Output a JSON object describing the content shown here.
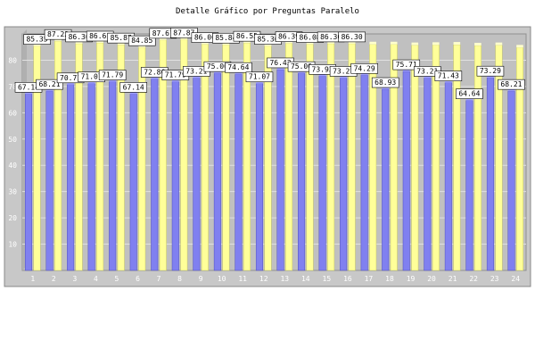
{
  "title": "Detalle Gráfico por Preguntas Paralelo",
  "chart_data": {
    "type": "bar",
    "title": "Detalle Gráfico por Preguntas Paralelo",
    "xlabel": "",
    "ylabel": "",
    "ylim": [
      0,
      90
    ],
    "yticks": [
      10,
      20,
      30,
      40,
      50,
      60,
      70,
      80
    ],
    "grid": true,
    "categories": [
      "1",
      "2",
      "3",
      "4",
      "5",
      "6",
      "7",
      "8",
      "9",
      "10",
      "11",
      "12",
      "13",
      "14",
      "15",
      "16",
      "17",
      "18",
      "19",
      "20",
      "21",
      "22",
      "23",
      "24"
    ],
    "series": [
      {
        "color": "#8080f0",
        "values": [
          67.14,
          68.21,
          70.71,
          71.07,
          71.79,
          67.14,
          72.86,
          71.79,
          73.21,
          75.0,
          74.64,
          71.07,
          76.43,
          75.0,
          73.93,
          73.21,
          74.29,
          68.93,
          75.71,
          73.21,
          71.43,
          64.64,
          73.29,
          68.21
        ]
      },
      {
        "color": "#ffff99",
        "values": [
          85.35,
          87.22,
          86.3,
          86.61,
          85.87,
          84.85,
          87.67,
          87.87,
          86.06,
          85.84,
          86.55,
          85.36,
          86.39,
          86.08,
          86.3,
          86.3,
          86.0,
          86.0,
          85.7,
          85.8,
          85.9,
          85.6,
          85.7,
          84.8
        ]
      }
    ],
    "data_labels": [
      {
        "series": 0,
        "text": [
          "67.14",
          "68.21",
          "70.71",
          "71.07",
          "71.79",
          "67.14",
          "72.86",
          "71.79",
          "73.21",
          "75.00",
          "74.64",
          "71.07",
          "76.43",
          "75.00",
          "73.93",
          "73.21",
          "74.29",
          "68.93",
          "75.71",
          "73.21",
          "71.43",
          "64.64",
          "73.29",
          "68.21"
        ]
      },
      {
        "series": 1,
        "text": [
          "85.35",
          "87.22",
          "86.30",
          "86.61",
          "85.87",
          "84.85",
          "87.67",
          "87.87",
          "86.06",
          "85.84",
          "86.55",
          "85.36",
          "86.39",
          "86.08",
          "86.30",
          "86.30",
          "",
          "",
          "",
          "",
          "",
          "",
          "",
          ""
        ]
      }
    ]
  }
}
